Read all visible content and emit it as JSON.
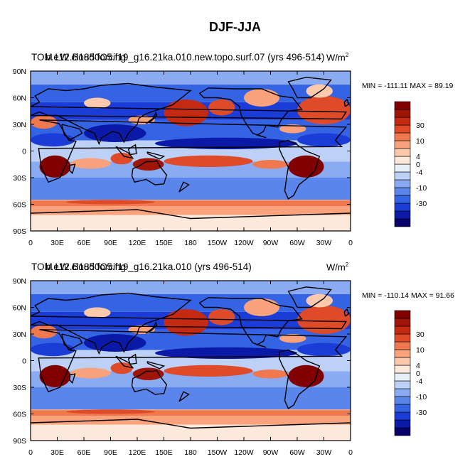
{
  "figure": {
    "title": "DJF-JJA"
  },
  "colors": {
    "levels": [
      "#08006a",
      "#0b1aa6",
      "#1b3cd6",
      "#3464e3",
      "#5a86ec",
      "#8aaaf2",
      "#bdd0f6",
      "#e6eef7",
      "#fde8dc",
      "#fcc9ad",
      "#f9a27b",
      "#f0784e",
      "#df4b28",
      "#c42a12",
      "#a11508",
      "#800000"
    ],
    "axis": "#000000",
    "land_outline": "#000000"
  },
  "chart_data": [
    {
      "type": "heatmap",
      "panel": "top",
      "title_overlap_a": "TOM LW cloud forcing",
      "title_overlap_b": "b.e12.B1850C5.f19_g16.21ka.010.new.topo.surf.07 (yrs 496-514)",
      "units_base": "W/m",
      "units_exp": "2",
      "min_max": "MIN = -111.11 MAX =  89.19",
      "xlabel": "",
      "ylabel": "",
      "x_ticks": [
        "0",
        "30E",
        "60E",
        "90E",
        "120E",
        "150E",
        "180",
        "150W",
        "120W",
        "90W",
        "60W",
        "30W",
        "0"
      ],
      "y_ticks": [
        "90N",
        "60N",
        "30N",
        "0",
        "30S",
        "60S",
        "90S"
      ],
      "colorbar_labels": [
        "30",
        "10",
        "4",
        "0",
        "-4",
        "-10",
        "-30"
      ],
      "xlim": [
        0,
        360
      ],
      "ylim": [
        -90,
        90
      ]
    },
    {
      "type": "heatmap",
      "panel": "bottom",
      "title_overlap_a": "TOM LW cloud forcing",
      "title_overlap_b": "b.e12.B1850C5.f19_g16.21ka.010 (yrs 496-514)",
      "units_base": "W/m",
      "units_exp": "2",
      "min_max": "MIN = -110.14 MAX =  91.66",
      "xlabel": "",
      "ylabel": "",
      "x_ticks": [
        "0",
        "30E",
        "60E",
        "90E",
        "120E",
        "150E",
        "180",
        "150W",
        "120W",
        "90W",
        "60W",
        "30W",
        "0"
      ],
      "y_ticks": [
        "90N",
        "60N",
        "30N",
        "0",
        "30S",
        "60S",
        "90S"
      ],
      "colorbar_labels": [
        "30",
        "10",
        "4",
        "0",
        "-4",
        "-10",
        "-30"
      ],
      "xlim": [
        0,
        360
      ],
      "ylim": [
        -90,
        90
      ]
    }
  ]
}
